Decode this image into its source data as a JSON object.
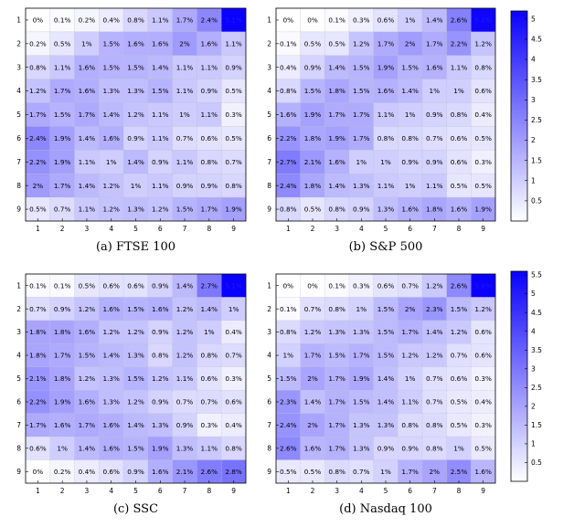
{
  "colors": {
    "low": "#ffffff",
    "high": "#0a00ff",
    "text": "#000000"
  },
  "chart_data": [
    {
      "type": "heatmap",
      "caption": "(a) FTSE 100",
      "x_ticks": [
        "1",
        "2",
        "3",
        "4",
        "5",
        "6",
        "7",
        "8",
        "9"
      ],
      "y_ticks": [
        "1",
        "2",
        "3",
        "4",
        "5",
        "6",
        "7",
        "8",
        "9"
      ],
      "colorbar": false,
      "vmax": 5.1,
      "values": [
        [
          0,
          0.1,
          0.2,
          0.4,
          0.8,
          1.1,
          1.7,
          2.4,
          5.1
        ],
        [
          0.2,
          0.5,
          1,
          1.5,
          1.6,
          1.6,
          2,
          1.6,
          1.1
        ],
        [
          0.8,
          1.1,
          1.6,
          1.5,
          1.5,
          1.4,
          1.1,
          1.1,
          0.9
        ],
        [
          1.2,
          1.7,
          1.6,
          1.3,
          1.3,
          1.5,
          1.1,
          0.9,
          0.5
        ],
        [
          1.7,
          1.5,
          1.7,
          1.4,
          1.2,
          1.1,
          1,
          1.1,
          0.3
        ],
        [
          2.4,
          1.9,
          1.4,
          1.6,
          0.9,
          1.1,
          0.7,
          0.6,
          0.5
        ],
        [
          2.2,
          1.9,
          1.1,
          1,
          1.4,
          0.9,
          1.1,
          0.8,
          0.7
        ],
        [
          2,
          1.7,
          1.4,
          1.2,
          1,
          1.1,
          0.9,
          0.9,
          0.8
        ],
        [
          0.5,
          0.7,
          1.1,
          1.2,
          1.3,
          1.2,
          1.5,
          1.7,
          1.9
        ]
      ]
    },
    {
      "type": "heatmap",
      "caption": "(b) S&P 500",
      "x_ticks": [
        "1",
        "2",
        "3",
        "4",
        "5",
        "6",
        "7",
        "8",
        "9"
      ],
      "y_ticks": [
        "1",
        "2",
        "3",
        "4",
        "5",
        "6",
        "7",
        "8",
        "9"
      ],
      "colorbar": true,
      "colorbar_ticks": [
        "0.5",
        "1",
        "1.5",
        "2",
        "2.5",
        "3",
        "3.5",
        "4",
        "4.5",
        "5"
      ],
      "colorbar_range": [
        0,
        5.2
      ],
      "vmax": 5.2,
      "values": [
        [
          0,
          0,
          0.1,
          0.3,
          0.6,
          1,
          1.4,
          2.6,
          5.1
        ],
        [
          0.1,
          0.5,
          0.5,
          1.2,
          1.7,
          2,
          1.7,
          2.2,
          1.2
        ],
        [
          0.4,
          0.9,
          1.4,
          1.5,
          1.9,
          1.5,
          1.6,
          1.1,
          0.8
        ],
        [
          0.8,
          1.5,
          1.8,
          1.5,
          1.6,
          1.4,
          1,
          1,
          0.6
        ],
        [
          1.6,
          1.9,
          1.7,
          1.7,
          1.1,
          1,
          0.9,
          0.8,
          0.4
        ],
        [
          2.2,
          1.8,
          1.9,
          1.7,
          0.8,
          0.8,
          0.7,
          0.6,
          0.5
        ],
        [
          2.7,
          2.1,
          1.6,
          1,
          1,
          0.9,
          0.9,
          0.6,
          0.3
        ],
        [
          2.4,
          1.8,
          1.4,
          1.3,
          1.1,
          1,
          1.1,
          0.5,
          0.5
        ],
        [
          0.8,
          0.5,
          0.8,
          0.9,
          1.3,
          1.6,
          1.8,
          1.6,
          1.9
        ]
      ]
    },
    {
      "type": "heatmap",
      "caption": "(c) SSC",
      "x_ticks": [
        "1",
        "2",
        "3",
        "4",
        "5",
        "6",
        "7",
        "8",
        "9"
      ],
      "y_ticks": [
        "1",
        "2",
        "3",
        "4",
        "5",
        "6",
        "7",
        "8",
        "9"
      ],
      "colorbar": false,
      "vmax": 5.1,
      "values": [
        [
          0.1,
          0.1,
          0.5,
          0.6,
          0.6,
          0.9,
          1.4,
          2.7,
          5.1
        ],
        [
          0.7,
          0.9,
          1.2,
          1.6,
          1.5,
          1.6,
          1.2,
          1.4,
          1
        ],
        [
          1.8,
          1.8,
          1.6,
          1.2,
          1.2,
          0.9,
          1.2,
          1,
          0.4
        ],
        [
          1.8,
          1.7,
          1.5,
          1.4,
          1.3,
          0.8,
          1.2,
          0.8,
          0.7
        ],
        [
          2.1,
          1.8,
          1.2,
          1.3,
          1.5,
          1.2,
          1.1,
          0.6,
          0.3
        ],
        [
          2.2,
          1.9,
          1.6,
          1.3,
          1.2,
          0.9,
          0.7,
          0.7,
          0.6
        ],
        [
          1.7,
          1.6,
          1.7,
          1.6,
          1.4,
          1.3,
          0.9,
          0.3,
          0.4
        ],
        [
          0.6,
          1,
          1.4,
          1.6,
          1.5,
          1.9,
          1.3,
          1.1,
          0.8
        ],
        [
          0,
          0.2,
          0.4,
          0.6,
          0.9,
          1.6,
          2.1,
          2.6,
          2.8
        ]
      ]
    },
    {
      "type": "heatmap",
      "caption": "(d) Nasdaq 100",
      "x_ticks": [
        "1",
        "2",
        "3",
        "4",
        "5",
        "6",
        "7",
        "8",
        "9"
      ],
      "y_ticks": [
        "1",
        "2",
        "3",
        "4",
        "5",
        "6",
        "7",
        "8",
        "9"
      ],
      "colorbar": true,
      "colorbar_ticks": [
        "0.5",
        "1",
        "1.5",
        "2",
        "2.5",
        "3",
        "3.5",
        "4",
        "4.5",
        "5",
        "5.5"
      ],
      "colorbar_range": [
        0,
        5.6
      ],
      "vmax": 5.6,
      "values": [
        [
          0,
          0,
          0.1,
          0.3,
          0.6,
          0.7,
          1.2,
          2.6,
          5.6
        ],
        [
          0.1,
          0.7,
          0.8,
          1,
          1.5,
          2,
          2.3,
          1.5,
          1.2
        ],
        [
          0.8,
          1.2,
          1.3,
          1.3,
          1.5,
          1.7,
          1.4,
          1.2,
          0.6
        ],
        [
          1,
          1.7,
          1.5,
          1.7,
          1.5,
          1.2,
          1.2,
          0.7,
          0.6
        ],
        [
          1.5,
          2,
          1.7,
          1.9,
          1.4,
          1,
          0.7,
          0.6,
          0.3
        ],
        [
          2.3,
          1.4,
          1.7,
          1.5,
          1.4,
          1.1,
          0.7,
          0.5,
          0.4
        ],
        [
          2.4,
          2,
          1.7,
          1.3,
          1.3,
          0.8,
          0.8,
          0.5,
          0.3
        ],
        [
          2.6,
          1.6,
          1.7,
          1.3,
          0.9,
          0.9,
          0.8,
          1,
          0.5
        ],
        [
          0.5,
          0.5,
          0.8,
          0.7,
          1,
          1.7,
          2,
          2.5,
          1.6
        ]
      ]
    }
  ]
}
